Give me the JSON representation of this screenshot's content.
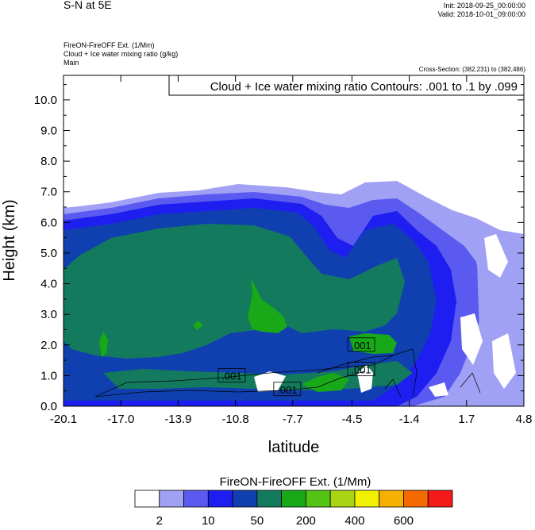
{
  "header": {
    "title": "S-N at 5E",
    "init": "Init: 2018-09-25_00:00:00",
    "valid": "Valid: 2018-10-01_09:00:00",
    "field1": "FireON-FireOFF Ext.   (1/Mm)",
    "field2": "Cloud + Ice water mixing ratio   (g/kg)",
    "field3": "Main",
    "cross_section": "Cross-Section: (382,231) to (382,486)"
  },
  "chart_data": {
    "type": "heatmap",
    "contour_title": "Cloud + Ice water mixing ratio Contours: .001 to .1 by .099",
    "xlabel": "latitude",
    "ylabel": "Height (km)",
    "xlim": [
      -20.1,
      4.8
    ],
    "ylim": [
      0,
      10.8
    ],
    "x_ticks": [
      "-20.1",
      "-17.0",
      "-13.9",
      "-10.8",
      "-7.7",
      "-4.5",
      "-1.4",
      "1.7",
      "4.8"
    ],
    "x_tick_values": [
      -20.1,
      -17.0,
      -13.9,
      -10.8,
      -7.7,
      -4.5,
      -1.4,
      1.7,
      4.8
    ],
    "y_ticks": [
      "0.0",
      "1.0",
      "2.0",
      "3.0",
      "4.0",
      "5.0",
      "6.0",
      "7.0",
      "8.0",
      "9.0",
      "10.0"
    ],
    "y_tick_values": [
      0,
      1,
      2,
      3,
      4,
      5,
      6,
      7,
      8,
      9,
      10
    ],
    "contour_labels": [
      {
        "text": ".001",
        "x": -4.0,
        "y": 2.0
      },
      {
        "text": ".001",
        "x": -4.0,
        "y": 1.2
      },
      {
        "text": ".001",
        "x": -11.0,
        "y": 1.0
      },
      {
        "text": ".001",
        "x": -8.0,
        "y": 0.55
      }
    ],
    "colorbar": {
      "title": "FireON-FireOFF Ext.  (1/Mm)",
      "colors": [
        "#ffffff",
        "#a0a0f5",
        "#5a5af0",
        "#1e1ef0",
        "#1040b0",
        "#137a5e",
        "#18a818",
        "#54c414",
        "#a8d414",
        "#f0f000",
        "#f5b000",
        "#f56a00",
        "#f51a1a"
      ],
      "labels": [
        "2",
        "10",
        "50",
        "200",
        "400",
        "600"
      ]
    }
  }
}
